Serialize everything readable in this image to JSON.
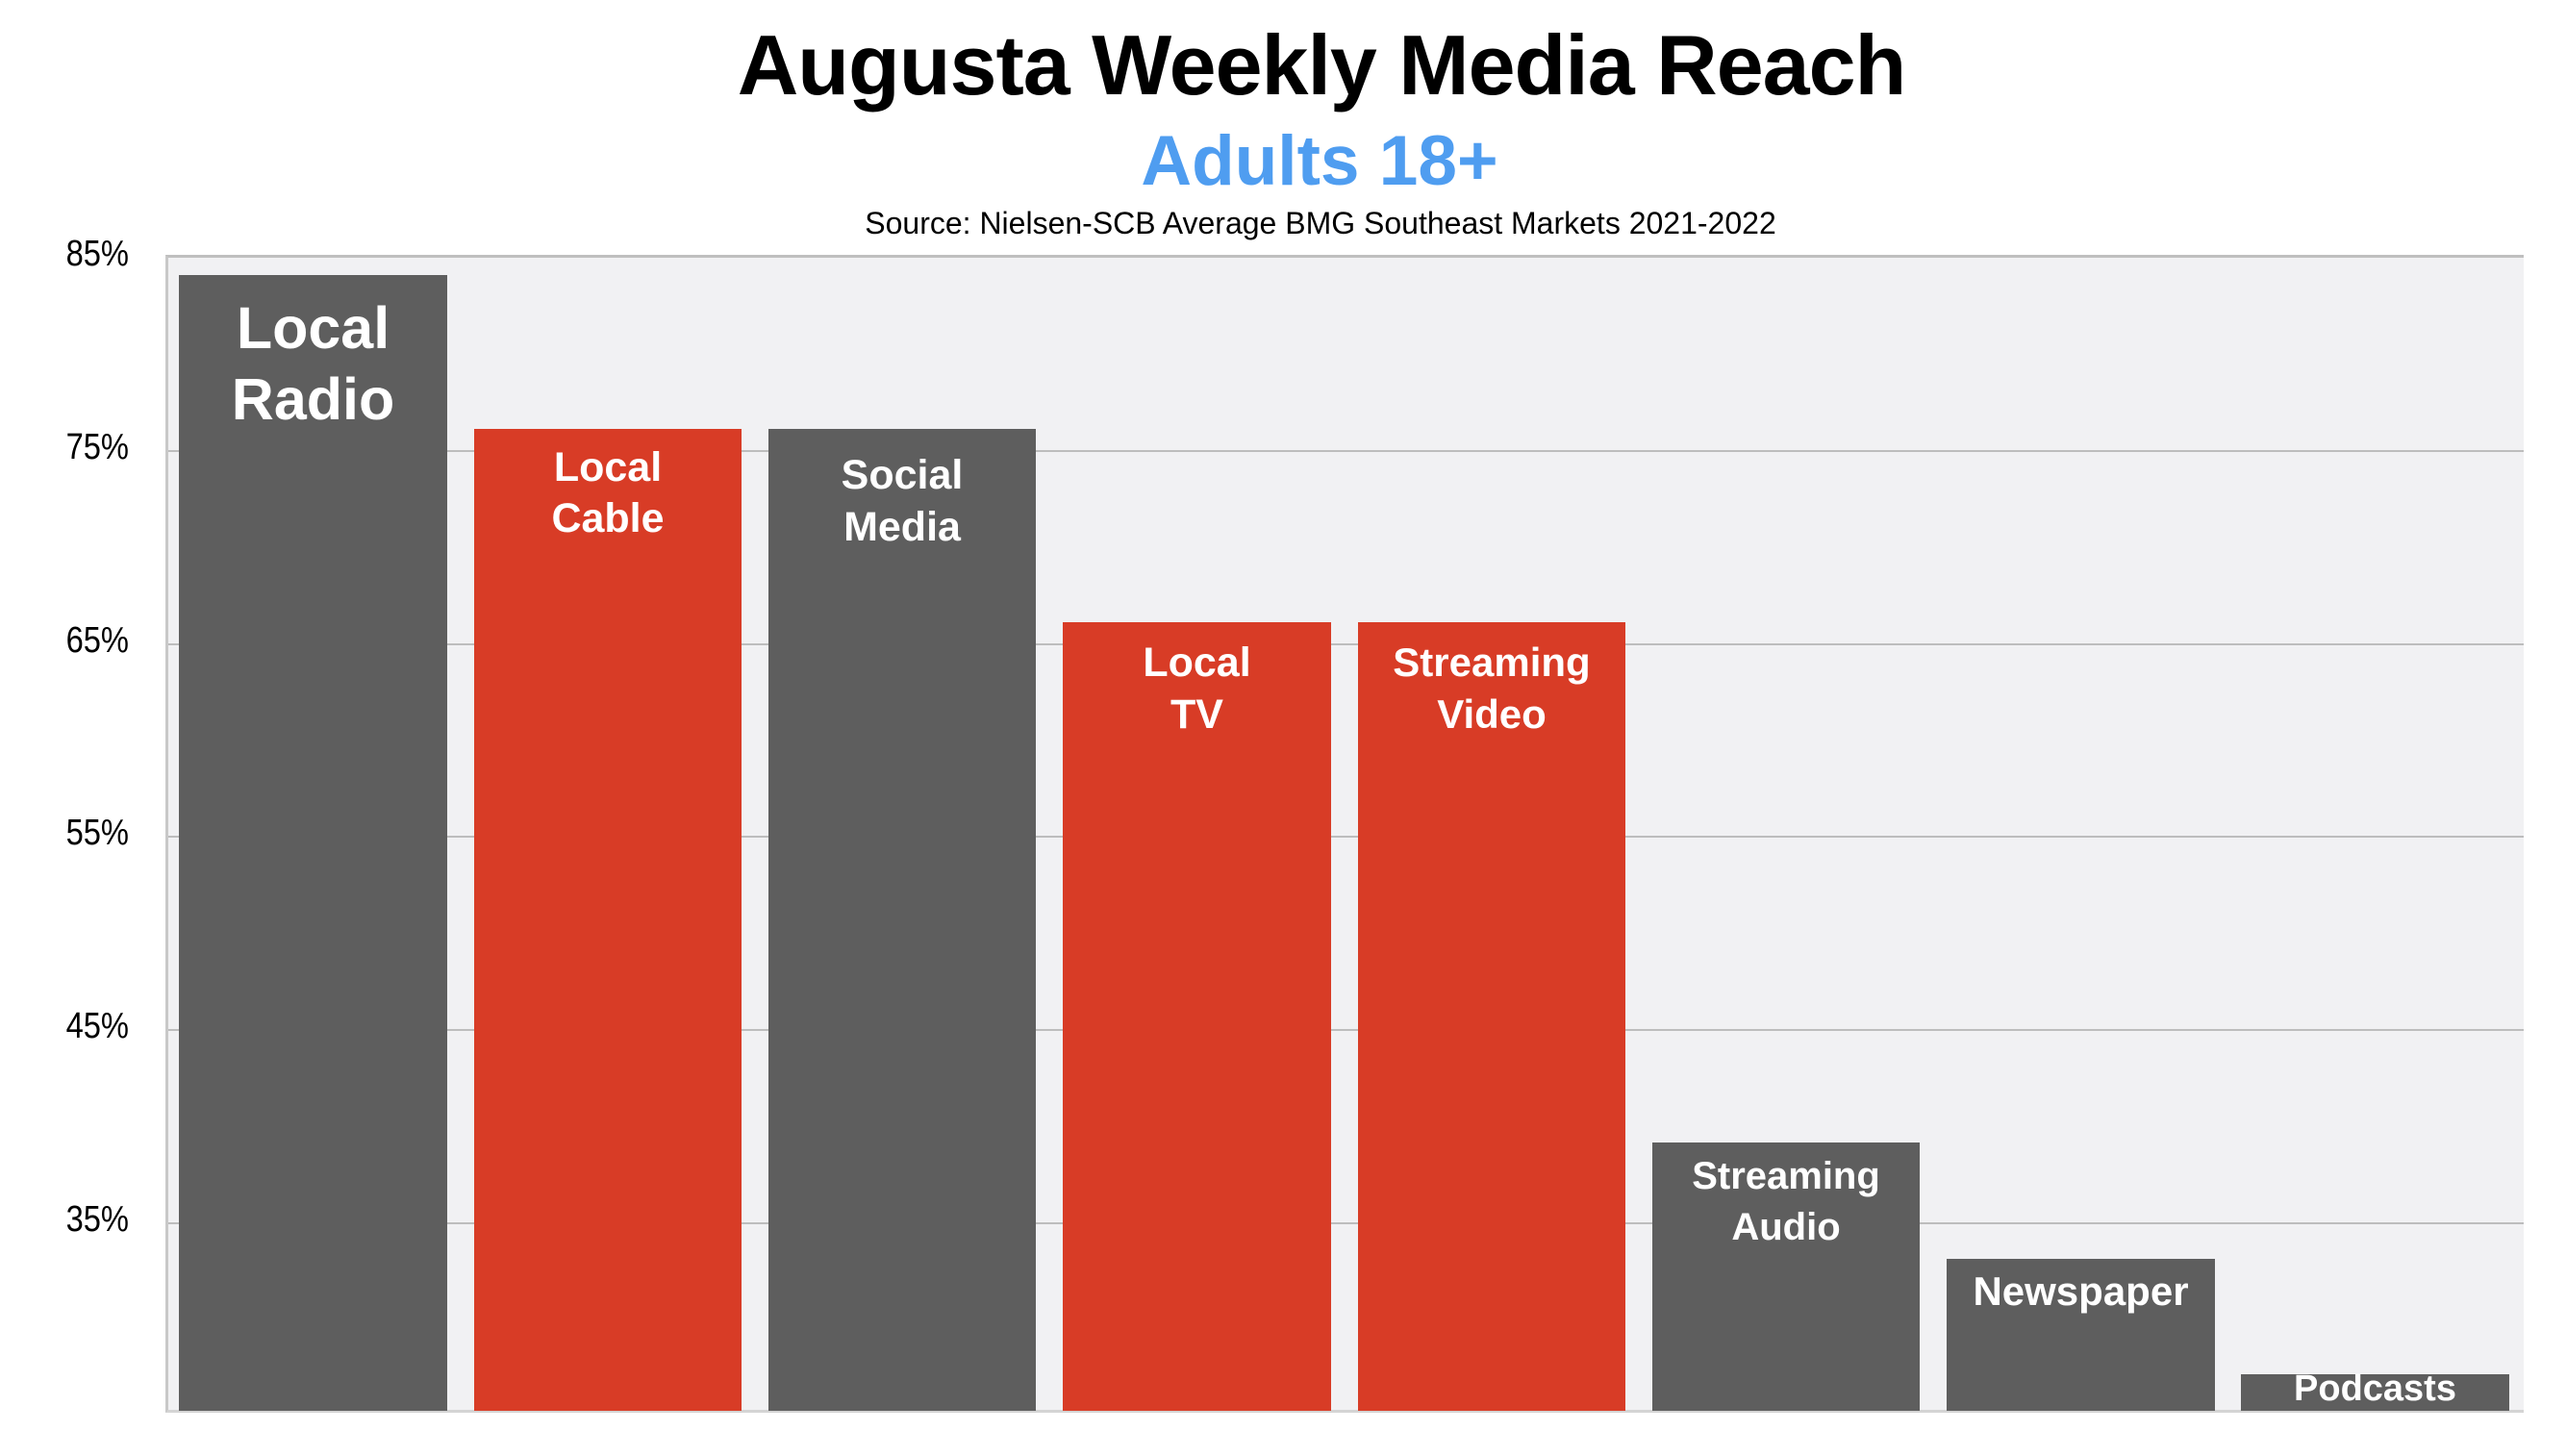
{
  "header": {
    "title": "Augusta Weekly Media Reach",
    "subtitle": "Adults 18+",
    "source": "Source: Nielsen-SCB Average BMG Southeast Markets 2021-2022"
  },
  "colors": {
    "subtitle": "#4f9df0",
    "gray_bar": "#5e5e5e",
    "red_bar": "#d83c26",
    "plot_background": "#f1f1f3",
    "gridline": "#bdbdbd"
  },
  "y_axis": {
    "ticks": [
      "85%",
      "75%",
      "65%",
      "55%",
      "45%",
      "35%"
    ]
  },
  "chart_data": {
    "type": "bar",
    "title": "Augusta Weekly Media Reach",
    "subtitle": "Adults 18+",
    "source": "Source: Nielsen-SCB Average BMG Southeast Markets 2021-2022",
    "xlabel": "",
    "ylabel": "",
    "ylim": [
      25,
      85
    ],
    "y_ticks": [
      85,
      75,
      65,
      55,
      45,
      35
    ],
    "y_tick_format": "percent",
    "grid": true,
    "legend": "none",
    "labels_inside_bars": true,
    "categories": [
      "Local Radio",
      "Local Cable",
      "Social Media",
      "Local TV",
      "Streaming Video",
      "Streaming Audio",
      "Newspaper",
      "Podcasts"
    ],
    "values": [
      84,
      76,
      76,
      66,
      66,
      39,
      33,
      27
    ],
    "bar_colors": [
      "#5e5e5e",
      "#d83c26",
      "#5e5e5e",
      "#d83c26",
      "#d83c26",
      "#5e5e5e",
      "#5e5e5e",
      "#5e5e5e"
    ]
  },
  "bars": [
    {
      "label": "Local\nRadio",
      "value": 84,
      "color": "gray"
    },
    {
      "label": "Local\nCable",
      "value": 76,
      "color": "red"
    },
    {
      "label": "Social\nMedia",
      "value": 76,
      "color": "gray"
    },
    {
      "label": "Local\nTV",
      "value": 66,
      "color": "red"
    },
    {
      "label": "Streaming\nVideo",
      "value": 66,
      "color": "red"
    },
    {
      "label": "Streaming\nAudio",
      "value": 39,
      "color": "gray"
    },
    {
      "label": "Newspaper",
      "value": 33,
      "color": "gray"
    },
    {
      "label": "Podcasts",
      "value": 27,
      "color": "gray"
    }
  ]
}
